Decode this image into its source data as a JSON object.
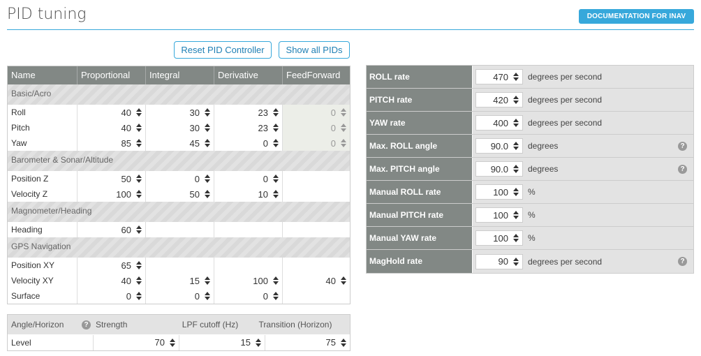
{
  "header": {
    "title": "PID tuning",
    "doc_button": "DOCUMENTATION FOR INAV"
  },
  "toolbar": {
    "reset_label": "Reset PID Controller",
    "show_all_label": "Show all PIDs"
  },
  "pid_table": {
    "columns": [
      "Name",
      "Proportional",
      "Integral",
      "Derivative",
      "FeedForward"
    ],
    "groups": [
      {
        "title": "Basic/Acro",
        "rows": [
          {
            "name": "Roll",
            "values": [
              "40",
              "30",
              "23",
              "0"
            ]
          },
          {
            "name": "Pitch",
            "values": [
              "40",
              "30",
              "23",
              "0"
            ]
          },
          {
            "name": "Yaw",
            "values": [
              "85",
              "45",
              "0",
              "0"
            ]
          }
        ]
      },
      {
        "title": "Barometer & Sonar/Altitude",
        "rows": [
          {
            "name": "Position Z",
            "values": [
              "50",
              "0",
              "0",
              ""
            ]
          },
          {
            "name": "Velocity Z",
            "values": [
              "100",
              "50",
              "10",
              ""
            ]
          }
        ]
      },
      {
        "title": "Magnometer/Heading",
        "rows": [
          {
            "name": "Heading",
            "values": [
              "60",
              "",
              "",
              ""
            ]
          }
        ]
      },
      {
        "title": "GPS Navigation",
        "rows": [
          {
            "name": "Position XY",
            "values": [
              "65",
              "",
              "",
              ""
            ]
          },
          {
            "name": "Velocity XY",
            "values": [
              "40",
              "15",
              "100",
              "40"
            ]
          },
          {
            "name": "Surface",
            "values": [
              "0",
              "0",
              "0",
              ""
            ]
          }
        ]
      }
    ]
  },
  "level_table": {
    "header": {
      "name": "Angle/Horizon",
      "strength": "Strength",
      "lpf": "LPF cutoff (Hz)",
      "transition": "Transition (Horizon)"
    },
    "row": {
      "name": "Level",
      "strength": "70",
      "lpf": "15",
      "transition": "75"
    }
  },
  "rates": [
    {
      "label": "ROLL rate",
      "value": "470",
      "unit": "degrees per second",
      "help": false
    },
    {
      "label": "PITCH rate",
      "value": "420",
      "unit": "degrees per second",
      "help": false
    },
    {
      "label": "YAW rate",
      "value": "400",
      "unit": "degrees per second",
      "help": false
    },
    {
      "label": "Max. ROLL angle",
      "value": "90.0",
      "unit": "degrees",
      "help": true
    },
    {
      "label": "Max. PITCH angle",
      "value": "90.0",
      "unit": "degrees",
      "help": true
    },
    {
      "label": "Manual ROLL rate",
      "value": "100",
      "unit": "%",
      "help": false
    },
    {
      "label": "Manual PITCH rate",
      "value": "100",
      "unit": "%",
      "help": false
    },
    {
      "label": "Manual YAW rate",
      "value": "100",
      "unit": "%",
      "help": false
    },
    {
      "label": "MagHold rate",
      "value": "90",
      "unit": "degrees per second",
      "help": true
    }
  ],
  "colors": {
    "accent": "#37a8db",
    "header_gray": "#828885"
  },
  "icons": {
    "help": "question-circle-icon",
    "spinner": "spinner-arrows-icon"
  }
}
